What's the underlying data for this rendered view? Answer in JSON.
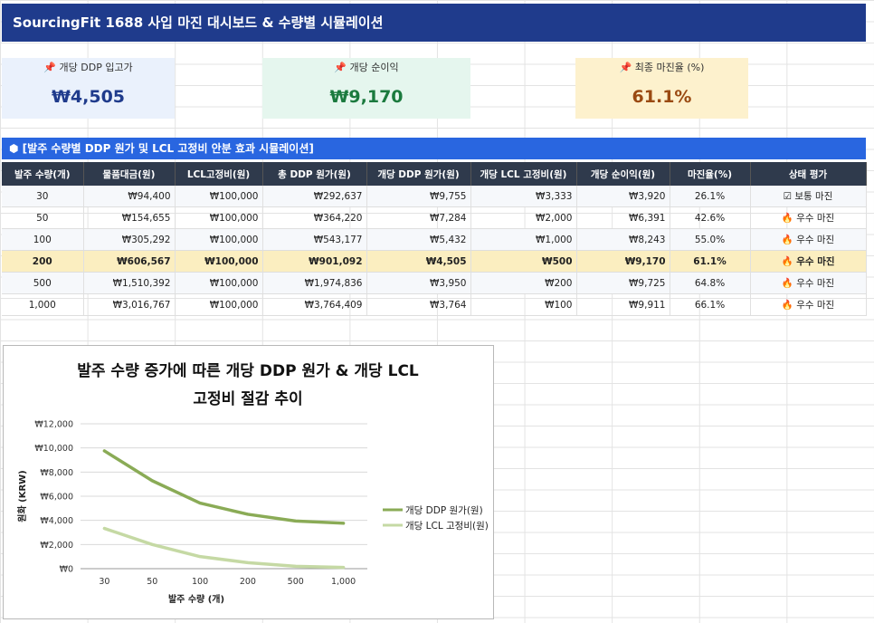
{
  "title": "SourcingFit 1688 사입 마진 대시보드 & 수량별 시뮬레이션",
  "kpis": [
    {
      "label": "개당 DDP 입고가",
      "value": "₩4,505",
      "color": "#1f3b8c"
    },
    {
      "label": "개당 순이익",
      "value": "₩9,170",
      "color": "#1b7a3e"
    },
    {
      "label": "최종 마진율 (%)",
      "value": "61.1%",
      "color": "#9a4a12"
    }
  ],
  "kpi_icon": "pin-icon",
  "section": {
    "icon": "cube-icon",
    "title": "[발주 수량별 DDP 원가 및 LCL 고정비 안분 효과 시뮬레이션]"
  },
  "table": {
    "headers": [
      "발주 수량(개)",
      "물품대금(원)",
      "LCL고정비(원)",
      "총 DDP 원가(원)",
      "개당 DDP 원가(원)",
      "개당 LCL 고정비(원)",
      "개당 순이익(원)",
      "마진율(%)",
      "상태 평가"
    ],
    "rows": [
      [
        "30",
        "₩94,400",
        "₩100,000",
        "₩292,637",
        "₩9,755",
        "₩3,333",
        "₩3,920",
        "26.1%",
        "☑ 보통 마진"
      ],
      [
        "50",
        "₩154,655",
        "₩100,000",
        "₩364,220",
        "₩7,284",
        "₩2,000",
        "₩6,391",
        "42.6%",
        "🔥 우수 마진"
      ],
      [
        "100",
        "₩305,292",
        "₩100,000",
        "₩543,177",
        "₩5,432",
        "₩1,000",
        "₩8,243",
        "55.0%",
        "🔥 우수 마진"
      ],
      [
        "200",
        "₩606,567",
        "₩100,000",
        "₩901,092",
        "₩4,505",
        "₩500",
        "₩9,170",
        "61.1%",
        "🔥 우수 마진"
      ],
      [
        "500",
        "₩1,510,392",
        "₩100,000",
        "₩1,974,836",
        "₩3,950",
        "₩200",
        "₩9,725",
        "64.8%",
        "🔥 우수 마진"
      ],
      [
        "1,000",
        "₩3,016,767",
        "₩100,000",
        "₩3,764,409",
        "₩3,764",
        "₩100",
        "₩9,911",
        "66.1%",
        "🔥 우수 마진"
      ]
    ],
    "highlight_row": 3,
    "highlight_color": "#fbeec0"
  },
  "chart_data": {
    "type": "line",
    "title": "발주 수량 증가에 따른 개당 DDP 원가 & 개당 LCL 고정비 절감 추이",
    "title_lines": [
      "발주 수량 증가에 따른 개당 DDP 원가 & 개당 LCL",
      "고정비 절감 추이"
    ],
    "categories": [
      "30",
      "50",
      "100",
      "200",
      "500",
      "1,000"
    ],
    "series": [
      {
        "name": "개당 DDP 원가(원)",
        "values": [
          9755,
          7284,
          5432,
          4505,
          3950,
          3764
        ],
        "color": "#8aab56"
      },
      {
        "name": "개당 LCL 고정비(원)",
        "values": [
          3333,
          2000,
          1000,
          500,
          200,
          100
        ],
        "color": "#c5d9a4"
      }
    ],
    "xlabel": "발주 수량 (개)",
    "ylabel": "원화 (KRW)",
    "ylim": [
      0,
      12000
    ],
    "yticks": [
      "₩0",
      "₩2,000",
      "₩4,000",
      "₩6,000",
      "₩8,000",
      "₩10,000",
      "₩12,000"
    ],
    "grid": true,
    "legend": "right"
  }
}
